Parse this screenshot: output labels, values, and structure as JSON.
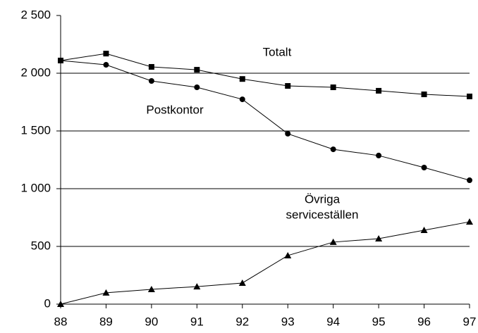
{
  "chart_data": {
    "type": "line",
    "categories": [
      "88",
      "89",
      "90",
      "91",
      "92",
      "93",
      "94",
      "95",
      "96",
      "97"
    ],
    "series": [
      {
        "color": "#000000",
        "marker": "square",
        "values": [
          2110,
          2170,
          2055,
          2030,
          1950,
          1890,
          1878,
          1848,
          1817,
          1799
        ]
      },
      {
        "color": "#000000",
        "marker": "circle",
        "values": [
          2110,
          2073,
          1933,
          1878,
          1774,
          1476,
          1341,
          1287,
          1183,
          1073
        ]
      },
      {
        "color": "#000000",
        "marker": "triangle",
        "values": [
          0,
          98,
          128,
          152,
          183,
          421,
          537,
          567,
          640,
          713
        ]
      }
    ],
    "annotations": [
      "Totalt",
      "Postkontor",
      "Övriga",
      "serviceställen"
    ],
    "ylim": [
      0,
      2500
    ],
    "yticks": [
      0,
      500,
      {
        "value": 1000,
        "label": "1 000"
      },
      {
        "value": 1500,
        "label": "1 500"
      },
      {
        "value": 2000,
        "label": "2 000"
      },
      {
        "value": 2500,
        "label": "2 500"
      }
    ],
    "grid": true
  }
}
